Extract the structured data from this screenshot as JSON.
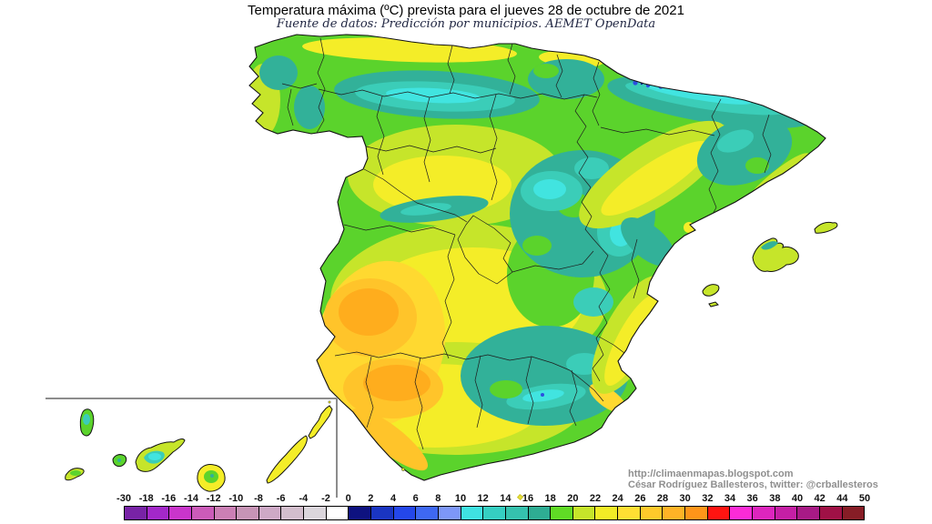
{
  "header": {
    "title": "Temperatura máxima (ºC) prevista para el jueves 28 de octubre de 2021",
    "subtitle": "Fuente de datos: Predicción por municipios. AEMET OpenData"
  },
  "attribution": {
    "line1": "http://climaenmapas.blogspot.com",
    "line2": "César Rodríguez Ballesteros, twitter: @crballesteros"
  },
  "legend": {
    "unit": "ºC",
    "ticks": [
      "-30",
      "-18",
      "-16",
      "-14",
      "-12",
      "-10",
      "-8",
      "-6",
      "-4",
      "-2",
      "0",
      "2",
      "4",
      "6",
      "8",
      "10",
      "12",
      "14",
      "16",
      "18",
      "20",
      "22",
      "24",
      "26",
      "28",
      "30",
      "32",
      "34",
      "36",
      "38",
      "40",
      "42",
      "44",
      "50"
    ],
    "cell_colors": [
      "#7823A6",
      "#A328C9",
      "#C935CB",
      "#CB5BB9",
      "#CB7FB5",
      "#C794B6",
      "#CEA9C6",
      "#D3BECD",
      "#DBD6DC",
      "#FFFFFF",
      "#0E1280",
      "#1A35C2",
      "#2447EA",
      "#3E68F2",
      "#7D97F8",
      "#3FE2E2",
      "#35CFC2",
      "#35C2AE",
      "#2EAD93",
      "#60DB25",
      "#C6E52A",
      "#F2EC26",
      "#FFDF33",
      "#FFC92B",
      "#FFB326",
      "#FF9519",
      "#FF1411",
      "#FB2BD7",
      "#DD25BE",
      "#C51FA5",
      "#A81A86",
      "#A01146",
      "#871D26"
    ]
  },
  "map": {
    "region": "España peninsular, Islas Baleares e Islas Canarias",
    "palette": {
      "sea": "#FFFFFF",
      "coastline": "#111111",
      "boundary": "#1d1d1d",
      "inset_border": "#8c8c8c",
      "green": "#5BD32C",
      "yellow_green": "#C6E52A",
      "yellow": "#F4ED28",
      "gold": "#FFD930",
      "amber": "#FFC42A",
      "orange": "#FFAD1D",
      "teal": "#32B199",
      "turquoise": "#3BCDB8",
      "cyan": "#41E4E0",
      "blue": "#2C4FE0",
      "navy": "#131F96"
    }
  }
}
